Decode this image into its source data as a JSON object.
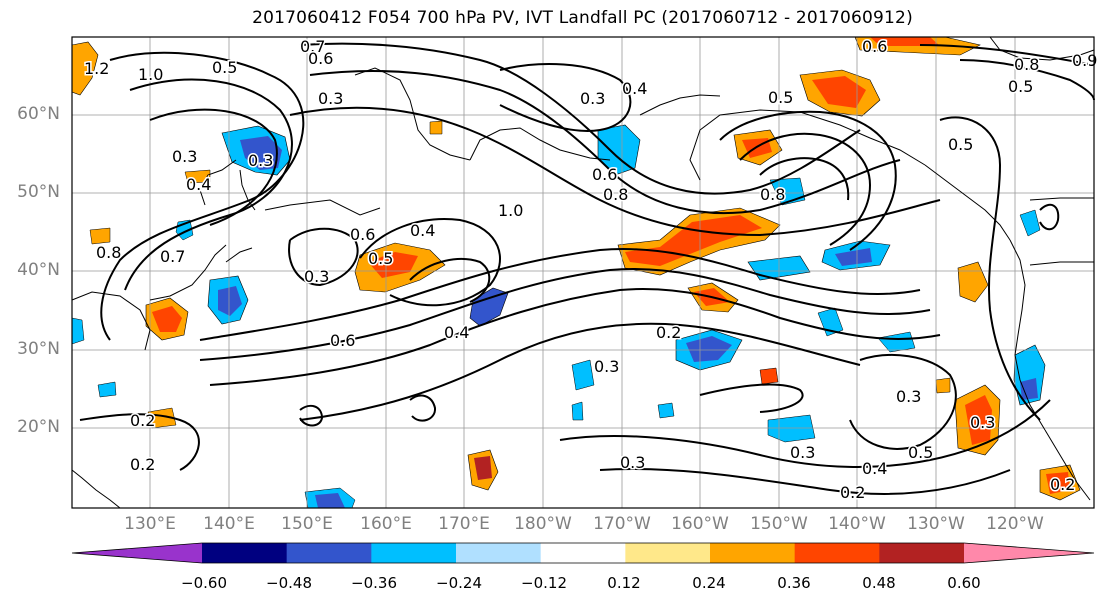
{
  "title": "2017060412 F054 700 hPa PV, IVT Landfall PC (2017060712 - 2017060912)",
  "map": {
    "lat_labels": [
      "60°N",
      "50°N",
      "40°N",
      "30°N",
      "20°N"
    ],
    "lon_labels": [
      "130°E",
      "140°E",
      "150°E",
      "160°E",
      "170°E",
      "180°W",
      "170°W",
      "160°W",
      "150°W",
      "140°W",
      "130°W",
      "120°W"
    ],
    "contour_labels": [
      "1.2",
      "1.0",
      "0.5",
      "0.7",
      "0.6",
      "0.6",
      "0.3",
      "0.3",
      "0.4",
      "0.5",
      "0.8",
      "0.5",
      "0.4",
      "0.3",
      "0.5",
      "0.6",
      "0.3",
      "0.8",
      "1.0",
      "0.6",
      "0.8",
      "0.4",
      "0.5",
      "0.3",
      "0.6",
      "0.4",
      "0.2",
      "0.3",
      "0.2",
      "0.2",
      "0.3",
      "0.3",
      "0.4",
      "0.5",
      "0.3",
      "0.2",
      "0.2",
      "0.8",
      "0.7",
      "0.3",
      "0.9"
    ]
  },
  "colorbar": {
    "ticks": [
      "−0.60",
      "−0.48",
      "−0.36",
      "−0.24",
      "−0.12",
      "0.12",
      "0.24",
      "0.36",
      "0.48",
      "0.60"
    ],
    "colors": [
      "#9933cc",
      "#000080",
      "#3355cc",
      "#00bfff",
      "#b0e0ff",
      "#ffffff",
      "#ffe88a",
      "#ffa500",
      "#ff4500",
      "#b22222",
      "#ff88aa"
    ]
  },
  "palette": {
    "shade_blue": "#00bfff",
    "shade_midblue": "#3355cc",
    "shade_orange": "#ffa500",
    "shade_red": "#ff4500",
    "shade_darkred": "#b22222",
    "shade_yellow": "#ffe88a",
    "shade_lightblue": "#b0e0ff",
    "contour": "#000000",
    "grid": "#999999"
  }
}
